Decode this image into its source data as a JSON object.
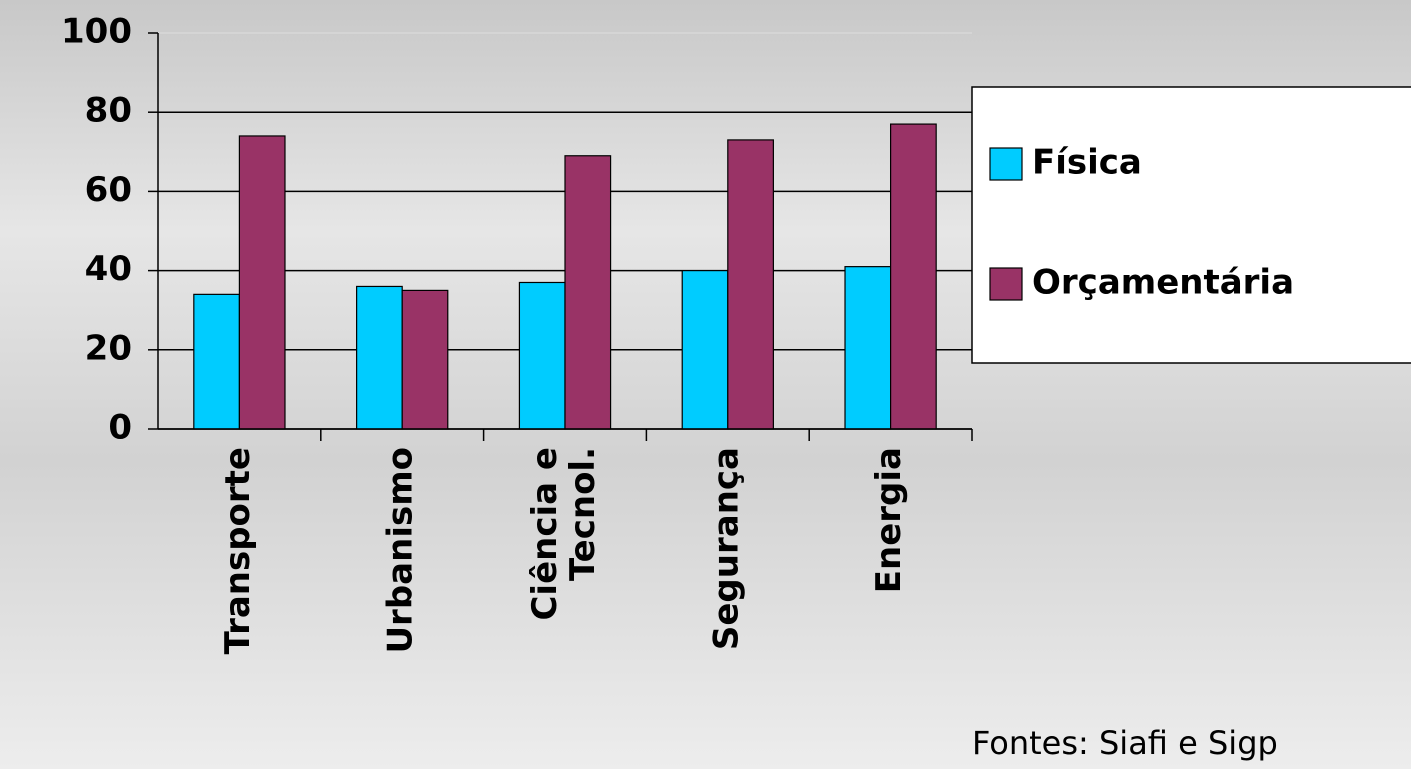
{
  "chart_data": {
    "type": "bar",
    "categories": [
      "Transporte",
      "Urbanismo",
      "Ciência e Tecnol.",
      "Segurança",
      "Energia"
    ],
    "series": [
      {
        "name": "Física",
        "color": "#00ccff",
        "values": [
          34,
          36,
          37,
          40,
          41
        ]
      },
      {
        "name": "Orçamentária",
        "color": "#993366",
        "values": [
          74,
          35,
          69,
          73,
          77
        ]
      }
    ],
    "ylim": [
      0,
      100
    ],
    "yticks": [
      0,
      20,
      40,
      60,
      80,
      100
    ],
    "grid": true,
    "legend": "right",
    "source": "Fontes: Siafi e Sigp"
  }
}
